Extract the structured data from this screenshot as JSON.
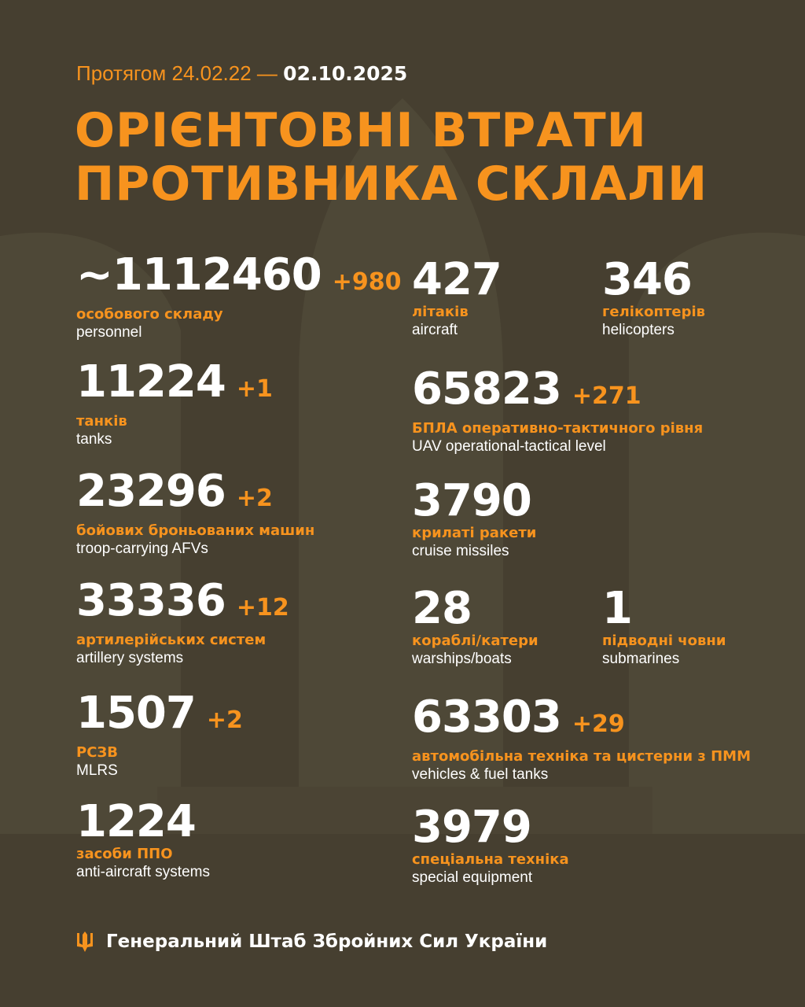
{
  "header": {
    "period_prefix": "Протягом 24.02.22 —",
    "period_end": "02.10.2025",
    "title_line1": "ОРІЄНТОВНІ ВТРАТИ",
    "title_line2": "ПРОТИВНИКА СКЛАЛИ"
  },
  "left": [
    {
      "value": "~1112460",
      "delta": "+980",
      "ua": "особового складу",
      "en": "personnel"
    },
    {
      "value": "11224",
      "delta": "+1",
      "ua": "танків",
      "en": "tanks"
    },
    {
      "value": "23296",
      "delta": "+2",
      "ua": "бойових броньованих машин",
      "en": "troop-carrying AFVs"
    },
    {
      "value": "33336",
      "delta": "+12",
      "ua": "артилерійських систем",
      "en": "artillery systems"
    },
    {
      "value": "1507",
      "delta": "+2",
      "ua": "РСЗВ",
      "en": "MLRS"
    },
    {
      "value": "1224",
      "delta": "",
      "ua": "засоби ППО",
      "en": "anti-aircraft systems"
    }
  ],
  "right": [
    {
      "value": "427",
      "delta": "",
      "ua": "літаків",
      "en": "aircraft"
    },
    {
      "value": "346",
      "delta": "",
      "ua": "гелікоптерів",
      "en": "helicopters"
    },
    {
      "value": "65823",
      "delta": "+271",
      "ua": "БПЛА оперативно-тактичного рівня",
      "en": "UAV operational-tactical level"
    },
    {
      "value": "3790",
      "delta": "",
      "ua": "крилаті ракети",
      "en": "cruise missiles"
    },
    {
      "value": "28",
      "delta": "",
      "ua": "кораблі/катери",
      "en": "warships/boats"
    },
    {
      "value": "1",
      "delta": "",
      "ua": "підводні човни",
      "en": "submarines"
    },
    {
      "value": "63303",
      "delta": "+29",
      "ua": "автомобільна техніка та цистерни з ПММ",
      "en": "vehicles & fuel tanks"
    },
    {
      "value": "3979",
      "delta": "",
      "ua": "спеціальна техніка",
      "en": "special equipment"
    }
  ],
  "footer": {
    "org": "Генеральний Штаб Збройних Сил України",
    "icon": "trident-icon"
  },
  "colors": {
    "background": "#463f30",
    "accent": "#f7931e",
    "text": "#ffffff"
  }
}
